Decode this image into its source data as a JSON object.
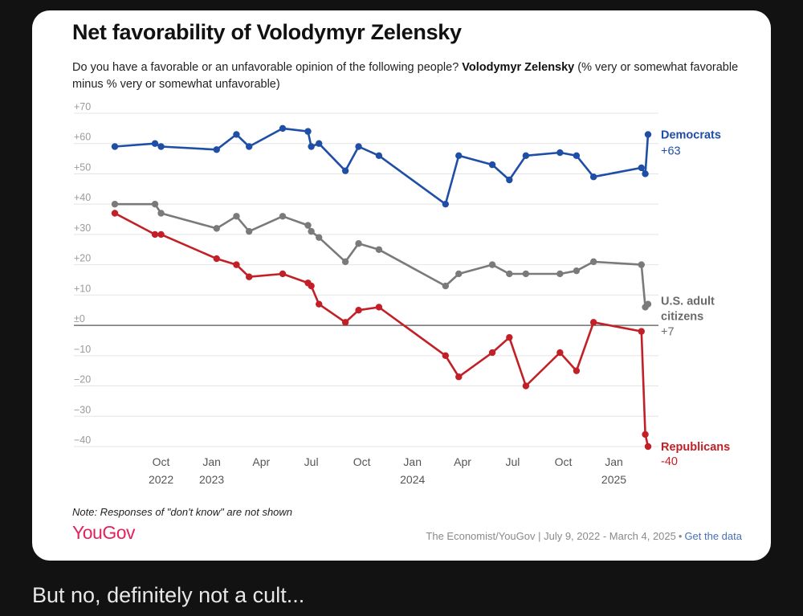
{
  "post": {
    "caption": "But no, definitely not a cult..."
  },
  "chart_data": {
    "type": "line",
    "title": "Net favorability of Volodymyr Zelensky",
    "subtitle_plain": "Do you have a favorable or an unfavorable opinion of the following people?",
    "subtitle_bold": "Volodymyr Zelensky",
    "subtitle_tail": "(% very or somewhat favorable minus % very or somewhat unfavorable)",
    "xlabel": "",
    "ylabel": "",
    "ylim": [
      -40,
      70
    ],
    "xlim": [
      "2022-07-09",
      "2025-03-04"
    ],
    "y_ticks": [
      {
        "value": 70,
        "label": "+70"
      },
      {
        "value": 60,
        "label": "+60"
      },
      {
        "value": 50,
        "label": "+50"
      },
      {
        "value": 40,
        "label": "+40"
      },
      {
        "value": 30,
        "label": "+30"
      },
      {
        "value": 20,
        "label": "+20"
      },
      {
        "value": 10,
        "label": "+10"
      },
      {
        "value": 0,
        "label": "±0"
      },
      {
        "value": -10,
        "label": "−10"
      },
      {
        "value": -20,
        "label": "−20"
      },
      {
        "value": -30,
        "label": "−30"
      },
      {
        "value": -40,
        "label": "−40"
      }
    ],
    "x_ticks": [
      {
        "date": "2022-10-01",
        "label": "Oct",
        "year": "2022"
      },
      {
        "date": "2023-01-01",
        "label": "Jan",
        "year": "2023"
      },
      {
        "date": "2023-04-01",
        "label": "Apr",
        "year": ""
      },
      {
        "date": "2023-07-01",
        "label": "Jul",
        "year": ""
      },
      {
        "date": "2023-10-01",
        "label": "Oct",
        "year": ""
      },
      {
        "date": "2024-01-01",
        "label": "Jan",
        "year": "2024"
      },
      {
        "date": "2024-04-01",
        "label": "Apr",
        "year": ""
      },
      {
        "date": "2024-07-01",
        "label": "Jul",
        "year": ""
      },
      {
        "date": "2024-10-01",
        "label": "Oct",
        "year": ""
      },
      {
        "date": "2025-01-01",
        "label": "Jan",
        "year": "2025"
      }
    ],
    "grid": true,
    "series": [
      {
        "name": "Democrats",
        "end_label": "+63",
        "color": "#1f4ea6",
        "points": [
          [
            "2022-07-09",
            59
          ],
          [
            "2022-09-20",
            60
          ],
          [
            "2022-10-01",
            59
          ],
          [
            "2023-01-10",
            58
          ],
          [
            "2023-02-15",
            63
          ],
          [
            "2023-03-10",
            59
          ],
          [
            "2023-05-10",
            65
          ],
          [
            "2023-06-25",
            64
          ],
          [
            "2023-07-01",
            59
          ],
          [
            "2023-07-15",
            60
          ],
          [
            "2023-09-01",
            51
          ],
          [
            "2023-09-25",
            59
          ],
          [
            "2023-11-01",
            56
          ],
          [
            "2024-03-01",
            40
          ],
          [
            "2024-03-25",
            56
          ],
          [
            "2024-05-25",
            53
          ],
          [
            "2024-06-25",
            48
          ],
          [
            "2024-07-25",
            56
          ],
          [
            "2024-09-25",
            57
          ],
          [
            "2024-10-25",
            56
          ],
          [
            "2024-11-25",
            49
          ],
          [
            "2025-02-20",
            52
          ],
          [
            "2025-02-27",
            50
          ],
          [
            "2025-03-04",
            63
          ]
        ]
      },
      {
        "name": "U.S. adult citizens",
        "end_label": "+7",
        "color": "#7a7a7a",
        "points": [
          [
            "2022-07-09",
            40
          ],
          [
            "2022-09-20",
            40
          ],
          [
            "2022-10-01",
            37
          ],
          [
            "2023-01-10",
            32
          ],
          [
            "2023-02-15",
            36
          ],
          [
            "2023-03-10",
            31
          ],
          [
            "2023-05-10",
            36
          ],
          [
            "2023-06-25",
            33
          ],
          [
            "2023-07-01",
            31
          ],
          [
            "2023-07-15",
            29
          ],
          [
            "2023-09-01",
            21
          ],
          [
            "2023-09-25",
            27
          ],
          [
            "2023-11-01",
            25
          ],
          [
            "2024-03-01",
            13
          ],
          [
            "2024-03-25",
            17
          ],
          [
            "2024-05-25",
            20
          ],
          [
            "2024-06-25",
            17
          ],
          [
            "2024-07-25",
            17
          ],
          [
            "2024-09-25",
            17
          ],
          [
            "2024-10-25",
            18
          ],
          [
            "2024-11-25",
            21
          ],
          [
            "2025-02-20",
            20
          ],
          [
            "2025-02-27",
            6
          ],
          [
            "2025-03-04",
            7
          ]
        ]
      },
      {
        "name": "Republicans",
        "end_label": "-40",
        "color": "#c22026",
        "points": [
          [
            "2022-07-09",
            37
          ],
          [
            "2022-09-20",
            30
          ],
          [
            "2022-10-01",
            30
          ],
          [
            "2023-01-10",
            22
          ],
          [
            "2023-02-15",
            20
          ],
          [
            "2023-03-10",
            16
          ],
          [
            "2023-05-10",
            17
          ],
          [
            "2023-06-25",
            14
          ],
          [
            "2023-07-01",
            13
          ],
          [
            "2023-07-15",
            7
          ],
          [
            "2023-09-01",
            1
          ],
          [
            "2023-09-25",
            5
          ],
          [
            "2023-11-01",
            6
          ],
          [
            "2024-03-01",
            -10
          ],
          [
            "2024-03-25",
            -17
          ],
          [
            "2024-05-25",
            -9
          ],
          [
            "2024-06-25",
            -4
          ],
          [
            "2024-07-25",
            -20
          ],
          [
            "2024-09-25",
            -9
          ],
          [
            "2024-10-25",
            -15
          ],
          [
            "2024-11-25",
            1
          ],
          [
            "2025-02-20",
            -2
          ],
          [
            "2025-02-27",
            -36
          ],
          [
            "2025-03-04",
            -40
          ]
        ]
      }
    ]
  },
  "footer": {
    "note": "Note: Responses of \"don't know\" are not shown",
    "logo": "YouGov",
    "source": "The Economist/YouGov | July 9, 2022 - March 4, 2025",
    "separator": "•",
    "link": "Get the data"
  }
}
